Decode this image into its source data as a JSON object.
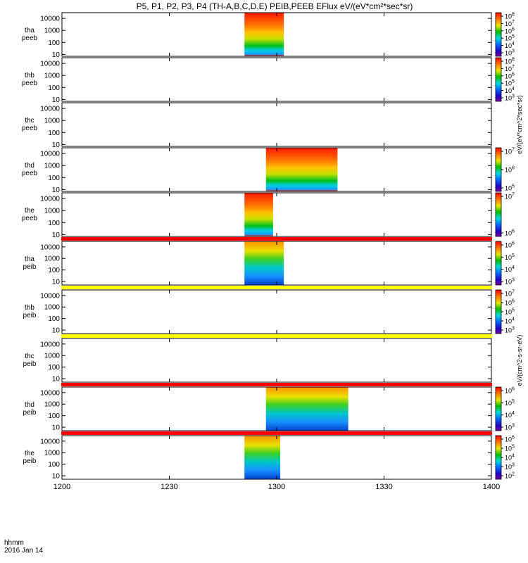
{
  "title": "P5, P1, P2, P3, P4 (TH-A,B,C,D,E) PEIB,PEEB EFlux eV/(eV*cm²*sec*sr)",
  "time_axis": {
    "unit_label": "hhmm",
    "date_label": "2016 Jan 14",
    "ticks": [
      "1200",
      "1230",
      "1300",
      "1330",
      "1400"
    ]
  },
  "colorbar_labels": {
    "electron": "eV/(eV*cm^2*sec*sr)",
    "ion": "eV/(cm^2-s-sr-eV)"
  },
  "chart_data": [
    {
      "type": "heatmap",
      "panel": "tha peeb",
      "label": [
        "tha",
        "peeb"
      ],
      "species": "electron",
      "x_range": [
        "12:00",
        "14:00"
      ],
      "y_scale": "log",
      "y_range_eV": [
        7,
        30000
      ],
      "y_ticks": [
        "10000",
        "1000",
        "100",
        "10"
      ],
      "data_interval": [
        "12:51",
        "13:02"
      ],
      "colorbar_ticks": [
        "10^8",
        "10^7",
        "10^6",
        "10^5",
        "10^4",
        "10^3"
      ],
      "band": false,
      "band_color": ""
    },
    {
      "type": "heatmap",
      "panel": "thb peeb",
      "label": [
        "thb",
        "peeb"
      ],
      "species": "electron",
      "x_range": [
        "12:00",
        "14:00"
      ],
      "y_scale": "log",
      "y_range_eV": [
        7,
        30000
      ],
      "y_ticks": [
        "10000",
        "1000",
        "100",
        "10"
      ],
      "data_interval": null,
      "colorbar_ticks": [
        "10^8",
        "10^7",
        "10^6",
        "10^5",
        "10^4",
        "10^3"
      ],
      "band": false,
      "band_color": ""
    },
    {
      "type": "heatmap",
      "panel": "thc peeb",
      "label": [
        "thc",
        "peeb"
      ],
      "species": "electron",
      "x_range": [
        "12:00",
        "14:00"
      ],
      "y_scale": "log",
      "y_range_eV": [
        7,
        30000
      ],
      "y_ticks": [
        "10000",
        "1000",
        "100",
        "10"
      ],
      "data_interval": null,
      "colorbar_ticks": [],
      "band": false,
      "band_color": ""
    },
    {
      "type": "heatmap",
      "panel": "thd peeb",
      "label": [
        "thd",
        "peeb"
      ],
      "species": "electron",
      "x_range": [
        "12:00",
        "14:00"
      ],
      "y_scale": "log",
      "y_range_eV": [
        7,
        30000
      ],
      "y_ticks": [
        "10000",
        "1000",
        "100",
        "10"
      ],
      "data_interval": [
        "12:57",
        "13:17"
      ],
      "colorbar_ticks": [
        "10^7",
        "10^6",
        "10^5"
      ],
      "band": false,
      "band_color": ""
    },
    {
      "type": "heatmap",
      "panel": "the peeb",
      "label": [
        "the",
        "peeb"
      ],
      "species": "electron",
      "x_range": [
        "12:00",
        "14:00"
      ],
      "y_scale": "log",
      "y_range_eV": [
        7,
        30000
      ],
      "y_ticks": [
        "10000",
        "1000",
        "100",
        "10"
      ],
      "data_interval": [
        "12:51",
        "12:59"
      ],
      "colorbar_ticks": [
        "10^7",
        "10^6"
      ],
      "band": true,
      "band_color": "#ff0000"
    },
    {
      "type": "heatmap",
      "panel": "tha peib",
      "label": [
        "tha",
        "peib"
      ],
      "species": "ion",
      "x_range": [
        "12:00",
        "14:00"
      ],
      "y_scale": "log",
      "y_range_eV": [
        5,
        30000
      ],
      "y_ticks": [
        "10000",
        "1000",
        "100",
        "10"
      ],
      "data_interval": [
        "12:51",
        "13:02"
      ],
      "colorbar_ticks": [
        "10^6",
        "10^5",
        "10^4",
        "10^3"
      ],
      "band": true,
      "band_color": "#ffff00"
    },
    {
      "type": "heatmap",
      "panel": "thb peib",
      "label": [
        "thb",
        "peib"
      ],
      "species": "ion",
      "x_range": [
        "12:00",
        "14:00"
      ],
      "y_scale": "log",
      "y_range_eV": [
        5,
        30000
      ],
      "y_ticks": [
        "10000",
        "1000",
        "100",
        "10"
      ],
      "data_interval": null,
      "colorbar_ticks": [
        "10^7",
        "10^6",
        "10^5",
        "10^4",
        "10^3"
      ],
      "band": true,
      "band_color": "#ffff00"
    },
    {
      "type": "heatmap",
      "panel": "thc peib",
      "label": [
        "thc",
        "peib"
      ],
      "species": "ion",
      "x_range": [
        "12:00",
        "14:00"
      ],
      "y_scale": "log",
      "y_range_eV": [
        5,
        30000
      ],
      "y_ticks": [
        "10000",
        "1000",
        "100",
        "10"
      ],
      "data_interval": null,
      "colorbar_ticks": [],
      "band": true,
      "band_color": "#ff0000"
    },
    {
      "type": "heatmap",
      "panel": "thd peib",
      "label": [
        "thd",
        "peib"
      ],
      "species": "ion",
      "x_range": [
        "12:00",
        "14:00"
      ],
      "y_scale": "log",
      "y_range_eV": [
        5,
        30000
      ],
      "y_ticks": [
        "10000",
        "1000",
        "100",
        "10"
      ],
      "data_interval": [
        "12:57",
        "13:20"
      ],
      "colorbar_ticks": [
        "10^6",
        "10^5",
        "10^4",
        "10^3"
      ],
      "band": true,
      "band_color": "#ff0000"
    },
    {
      "type": "heatmap",
      "panel": "the peib",
      "label": [
        "the",
        "peib"
      ],
      "species": "ion",
      "x_range": [
        "12:00",
        "14:00"
      ],
      "y_scale": "log",
      "y_range_eV": [
        5,
        30000
      ],
      "y_ticks": [
        "10000",
        "1000",
        "100",
        "10"
      ],
      "data_interval": [
        "12:51",
        "13:01"
      ],
      "colorbar_ticks": [
        "10^6",
        "10^5",
        "10^4",
        "10^3",
        "10^2"
      ],
      "band": false,
      "band_color": ""
    }
  ]
}
